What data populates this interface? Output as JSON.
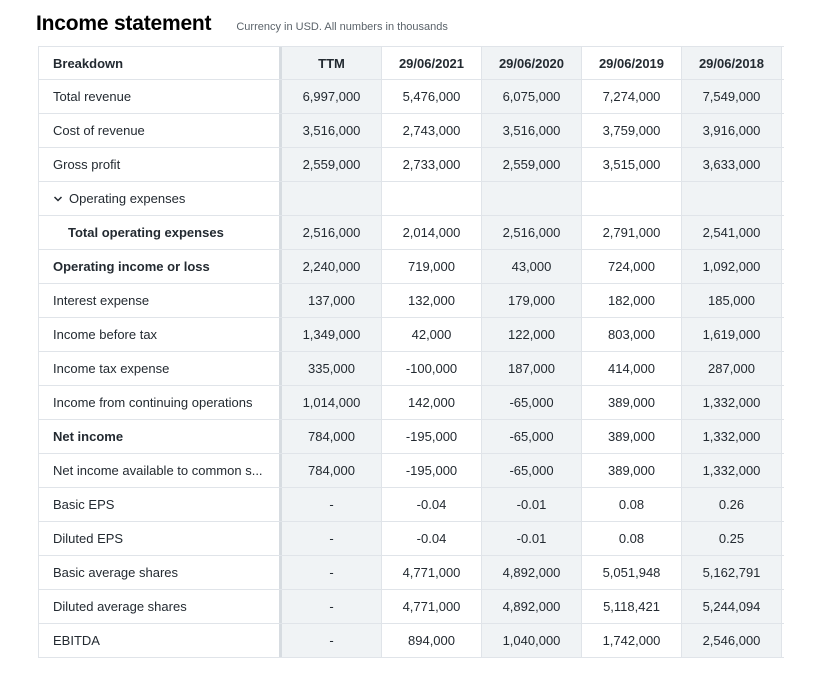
{
  "header": {
    "title": "Income statement",
    "subtitle": "Currency in USD. All numbers in thousands"
  },
  "table": {
    "columns": [
      "Breakdown",
      "TTM",
      "29/06/2021",
      "29/06/2020",
      "29/06/2019",
      "29/06/2018"
    ],
    "rows": [
      {
        "label": "Total revenue",
        "values": [
          "6,997,000",
          "5,476,000",
          "6,075,000",
          "7,274,000",
          "7,549,000"
        ]
      },
      {
        "label": "Cost of revenue",
        "values": [
          "3,516,000",
          "2,743,000",
          "3,516,000",
          "3,759,000",
          "3,916,000"
        ]
      },
      {
        "label": "Gross profit",
        "values": [
          "2,559,000",
          "2,733,000",
          "2,559,000",
          "3,515,000",
          "3,633,000"
        ]
      },
      {
        "label": "Operating expenses",
        "values": [
          "",
          "",
          "",
          "",
          ""
        ]
      },
      {
        "label": "Total operating expenses",
        "values": [
          "2,516,000",
          "2,014,000",
          "2,516,000",
          "2,791,000",
          "2,541,000"
        ]
      },
      {
        "label": "Operating income or loss",
        "values": [
          "2,240,000",
          "719,000",
          "43,000",
          "724,000",
          "1,092,000"
        ]
      },
      {
        "label": "Interest expense",
        "values": [
          "137,000",
          "132,000",
          "179,000",
          "182,000",
          "185,000"
        ]
      },
      {
        "label": "Income before tax",
        "values": [
          "1,349,000",
          "42,000",
          "122,000",
          "803,000",
          "1,619,000"
        ]
      },
      {
        "label": "Income tax expense",
        "values": [
          "335,000",
          "-100,000",
          "187,000",
          "414,000",
          "287,000"
        ]
      },
      {
        "label": "Income from continuing operations",
        "values": [
          "1,014,000",
          "142,000",
          "-65,000",
          "389,000",
          "1,332,000"
        ]
      },
      {
        "label": "Net income",
        "values": [
          "784,000",
          "-195,000",
          "-65,000",
          "389,000",
          "1,332,000"
        ]
      },
      {
        "label": "Net income available to common s...",
        "values": [
          "784,000",
          "-195,000",
          "-65,000",
          "389,000",
          "1,332,000"
        ]
      },
      {
        "label": "Basic EPS",
        "values": [
          "-",
          "-0.04",
          "-0.01",
          "0.08",
          "0.26"
        ]
      },
      {
        "label": "Diluted EPS",
        "values": [
          "-",
          "-0.04",
          "-0.01",
          "0.08",
          "0.25"
        ]
      },
      {
        "label": "Basic average shares",
        "values": [
          "-",
          "4,771,000",
          "4,892,000",
          "5,051,948",
          "5,162,791"
        ]
      },
      {
        "label": "Diluted average shares",
        "values": [
          "-",
          "4,771,000",
          "4,892,000",
          "5,118,421",
          "5,244,094"
        ]
      },
      {
        "label": "EBITDA",
        "values": [
          "-",
          "894,000",
          "1,040,000",
          "1,742,000",
          "2,546,000"
        ]
      }
    ]
  },
  "icons": {
    "expand": "chevron-down-icon"
  },
  "colors": {
    "shade": "#f0f3f5",
    "border": "#e0e4e9",
    "text": "#232a31"
  }
}
